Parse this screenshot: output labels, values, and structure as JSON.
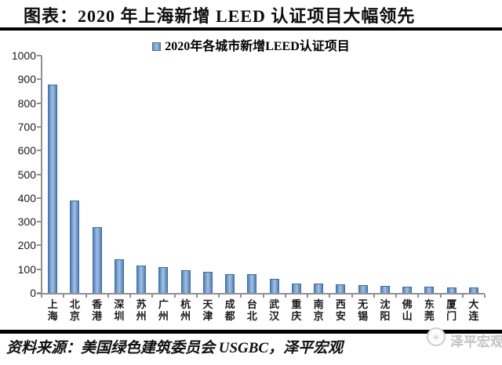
{
  "header": {
    "title": "图表：2020 年上海新增 LEED 认证项目大幅领先"
  },
  "footer": {
    "source": "资料来源：美国绿色建筑委员会 USGBC，泽平宏观",
    "watermark": "泽平宏观",
    "watermark_icon": "✳"
  },
  "colors": {
    "bar": "#4f81bd",
    "bar_border": "#3f6fa8",
    "axis": "#909090",
    "rule": "#000000",
    "watermark": "#c2c2c2"
  },
  "chart_data": {
    "type": "bar",
    "title": "2020年各城市新增LEED认证项目",
    "categories": [
      "上海",
      "北京",
      "香港",
      "深圳",
      "苏州",
      "广州",
      "杭州",
      "天津",
      "成都",
      "台北",
      "武汉",
      "重庆",
      "南京",
      "西安",
      "无锡",
      "沈阳",
      "佛山",
      "东莞",
      "厦门",
      "大连"
    ],
    "values": [
      878,
      390,
      277,
      143,
      117,
      109,
      95,
      90,
      80,
      78,
      58,
      41,
      39,
      36,
      32,
      29,
      28,
      25,
      23,
      22
    ],
    "xlabel": "",
    "ylabel": "",
    "ylim": [
      0,
      1000
    ],
    "ytick_step": 100,
    "grid": false,
    "legend_position": "top-center",
    "legend_entries": [
      "2020年各城市新增LEED认证项目"
    ]
  }
}
